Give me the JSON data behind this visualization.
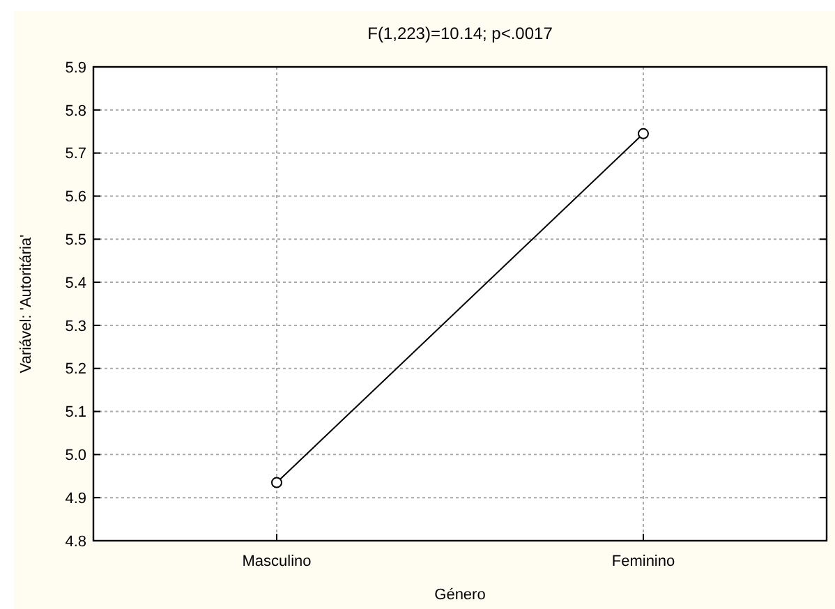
{
  "chart_data": {
    "type": "line",
    "title": "F(1,223)=10.14; p<.0017",
    "xlabel": "Género",
    "ylabel": "Variável: 'Autoritária'",
    "categories": [
      "Masculino",
      "Feminino"
    ],
    "series": [
      {
        "color": "#000000",
        "values": [
          4.935,
          5.745
        ]
      }
    ],
    "ylim": [
      4.8,
      5.9
    ],
    "yticks": [
      4.8,
      4.9,
      {
        "value": 5,
        "label": "5.0"
      },
      5.1,
      5.2,
      5.3,
      5.4,
      5.5,
      5.6,
      5.7,
      5.8,
      5.9
    ],
    "grid": true,
    "marker": "circle",
    "line_style": "solid"
  }
}
